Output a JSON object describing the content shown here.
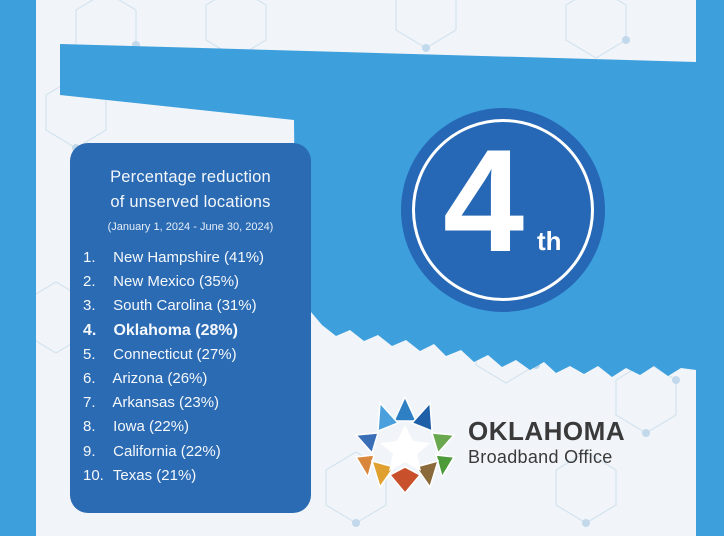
{
  "colors": {
    "side_blue": "#3d9fdc",
    "map_blue": "#3d9fdc",
    "card_blue": "#2b6bb3",
    "badge_blue": "#2668b6",
    "background": "#f1f5f9"
  },
  "card": {
    "title_line1": "Percentage reduction",
    "title_line2": "of unserved locations",
    "subtitle": "(January 1, 2024 - June 30, 2024)",
    "items": [
      {
        "num": "1.",
        "label": "New Hampshire (41%)"
      },
      {
        "num": "2.",
        "label": "New Mexico (35%)"
      },
      {
        "num": "3.",
        "label": "South Carolina (31%)"
      },
      {
        "num": "4.",
        "label": "Oklahoma (28%)"
      },
      {
        "num": "5.",
        "label": "Connecticut (27%)"
      },
      {
        "num": "6.",
        "label": "Arizona (26%)"
      },
      {
        "num": "7.",
        "label": "Arkansas (23%)"
      },
      {
        "num": "8.",
        "label": "Iowa (22%)"
      },
      {
        "num": "9.",
        "label": "California (22%)"
      },
      {
        "num": "10.",
        "label": "Texas (21%)"
      }
    ]
  },
  "badge": {
    "number": "4",
    "suffix": "th"
  },
  "logo": {
    "icon": "oklahoma-broadband-star-icon",
    "line1": "OKLAHOMA",
    "line2": "Broadband Office"
  }
}
